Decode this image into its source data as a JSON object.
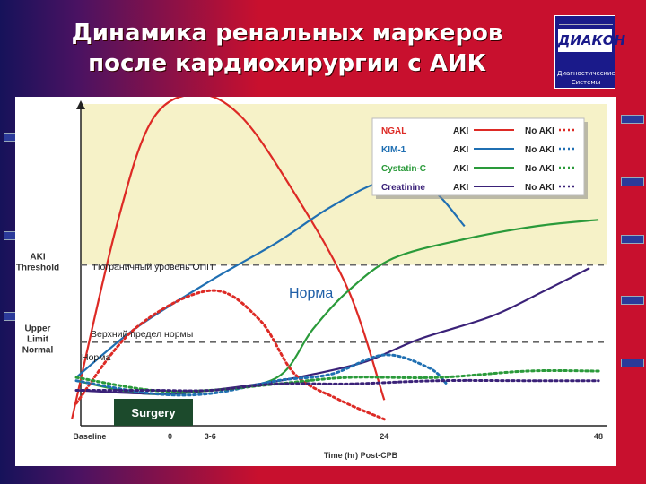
{
  "slide": {
    "title_line1": "Динамика ренальных маркеров",
    "title_line2": "после кардиохирургии с АИК",
    "logo_text": "ДИАКОН",
    "logo_sub1": "Диагностические",
    "logo_sub2": "Системы"
  },
  "colors": {
    "NGAL": "#dd2a25",
    "KIM-1": "#1f6fb2",
    "Cystatin-C": "#2a9a3a",
    "Creatinine": "#3a2178",
    "aki_zone": "#f6f2c8",
    "surgery_box": "#1c4a2c"
  },
  "chart_data": {
    "type": "line",
    "xlabel": "Time (hr) Post-CPB",
    "x_ticks": [
      "Baseline",
      "0",
      "3-6",
      "24",
      "48"
    ],
    "x_tick_values": [
      -9,
      0,
      4.5,
      24,
      48
    ],
    "xlim": [
      -10,
      49
    ],
    "ylim": [
      0,
      100
    ],
    "y_ticks": [
      {
        "label_line1": "AKI",
        "label_line2": "Threshold",
        "label_line3": "",
        "value": 50
      },
      {
        "label_line1": "Upper",
        "label_line2": "Limit",
        "label_line3": "Normal",
        "value": 26
      }
    ],
    "aki_threshold": 50,
    "upper_limit_normal": 26,
    "surgery_label": "Surgery",
    "annotations": {
      "borderline": "Пограничный уровень ОПП",
      "norm_big": "Норма",
      "upper_limit": "Верхний предел нормы",
      "norm_small": "Норма"
    },
    "legend": {
      "aki_label": "AKI",
      "no_aki_label": "No AKI",
      "markers": [
        "NGAL",
        "KIM-1",
        "Cystatin-C",
        "Creatinine"
      ]
    },
    "series": [
      {
        "name": "NGAL",
        "variant": "AKI",
        "x": [
          -11,
          -6,
          -2,
          3,
          8,
          14,
          20,
          24
        ],
        "y": [
          2,
          62,
          95,
          103,
          96,
          72,
          42,
          8
        ]
      },
      {
        "name": "KIM-1",
        "variant": "AKI",
        "x": [
          -10.5,
          -4,
          4.5,
          12,
          18,
          24,
          29,
          33
        ],
        "y": [
          15,
          30,
          45,
          57,
          68,
          76,
          74,
          62
        ]
      },
      {
        "name": "Cystatin-C",
        "variant": "AKI",
        "x": [
          -10.5,
          -3,
          4.5,
          12,
          16,
          20,
          25,
          33,
          41,
          48
        ],
        "y": [
          14,
          10,
          11,
          15,
          30,
          42,
          52,
          58,
          62,
          64
        ]
      },
      {
        "name": "Creatinine",
        "variant": "AKI",
        "x": [
          -10.5,
          0,
          10,
          16,
          22,
          28,
          36,
          42,
          47
        ],
        "y": [
          11,
          10,
          13,
          16,
          20,
          27,
          34,
          42,
          49
        ]
      },
      {
        "name": "NGAL",
        "variant": "No AKI",
        "x": [
          -10.5,
          -4,
          4.5,
          10,
          14,
          19,
          24
        ],
        "y": [
          7,
          30,
          42,
          33,
          16,
          8,
          2
        ]
      },
      {
        "name": "KIM-1",
        "variant": "No AKI",
        "x": [
          -10.5,
          -2,
          4.5,
          12,
          18,
          24,
          29,
          31
        ],
        "y": [
          14,
          10,
          10,
          14,
          16,
          22,
          18,
          13
        ]
      },
      {
        "name": "Cystatin-C",
        "variant": "No AKI",
        "x": [
          -10.5,
          -2,
          4.5,
          12,
          20,
          30,
          40,
          48
        ],
        "y": [
          15,
          11,
          11,
          13,
          15,
          15,
          17,
          17
        ]
      },
      {
        "name": "Creatinine",
        "variant": "No AKI",
        "x": [
          -10.5,
          -2,
          4.5,
          12,
          20,
          30,
          40,
          48
        ],
        "y": [
          11,
          11,
          11,
          13,
          13,
          14,
          14,
          14
        ]
      }
    ]
  }
}
